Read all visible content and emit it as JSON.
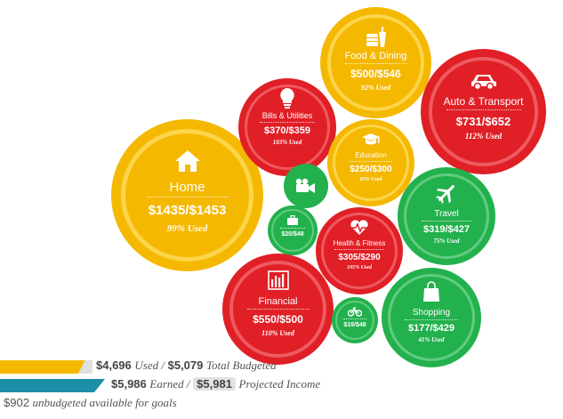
{
  "colors": {
    "yellow": "#f5b800",
    "red": "#e01f26",
    "green": "#23b14d",
    "teal": "#1e8fa8",
    "text": "#555555"
  },
  "bubbles": {
    "home": {
      "name": "Home",
      "amount": "$1435/$1453",
      "used": "99% Used",
      "icon": "house-icon"
    },
    "food": {
      "name": "Food & Dining",
      "amount": "$500/$546",
      "used": "92% Used",
      "icon": "food-icon"
    },
    "auto": {
      "name": "Auto & Transport",
      "amount": "$731/$652",
      "used": "112% Used",
      "icon": "car-icon"
    },
    "bills": {
      "name": "Bills & Utilities",
      "amount": "$370/$359",
      "used": "103% Used",
      "icon": "lightbulb-icon"
    },
    "education": {
      "name": "Education",
      "amount": "$250/$300",
      "used": "83% Used",
      "icon": "graduation-cap-icon"
    },
    "entertainment": {
      "icon": "video-camera-icon"
    },
    "travel": {
      "name": "Travel",
      "amount": "$319/$427",
      "used": "75% Used",
      "icon": "airplane-icon"
    },
    "business": {
      "amount": "$20/$48",
      "icon": "briefcase-icon"
    },
    "health": {
      "name": "Health & Fitness",
      "amount": "$305/$290",
      "used": "105% Used",
      "icon": "heartbeat-icon"
    },
    "financial": {
      "name": "Financial",
      "amount": "$550/$500",
      "used": "110% Used",
      "icon": "bar-chart-icon"
    },
    "shopping": {
      "name": "Shopping",
      "amount": "$177/$429",
      "used": "41% Used",
      "icon": "shopping-bag-icon"
    },
    "bike": {
      "amount": "$19/$48",
      "icon": "bicycle-icon"
    }
  },
  "summary": {
    "used_amount": "$4,696",
    "used_label": "Used /",
    "total_budgeted": "$5,079",
    "total_budgeted_label": "Total Budgeted",
    "used_fraction": 0.92,
    "earned_amount": "$5,986",
    "earned_label": "Earned /",
    "projected_amount": "$5,981",
    "projected_label": "Projected Income",
    "unbudgeted_amount": "$902",
    "unbudgeted_label": "unbudgeted available for goals"
  }
}
